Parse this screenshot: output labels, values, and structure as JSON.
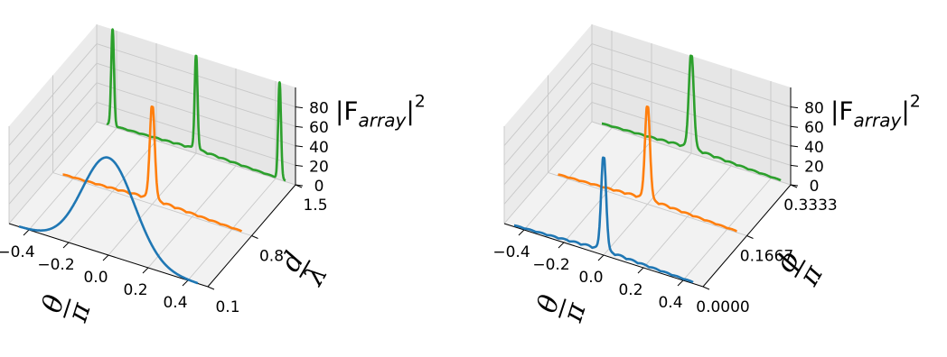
{
  "chart_data": [
    {
      "type": "line",
      "projection": "3d",
      "xlabel": "θ/π",
      "ylabel": "d/λ",
      "zlabel": "|F_array|²",
      "zlabel_main": "|F",
      "zlabel_sub": "array",
      "zlabel_sup": "2",
      "x_ticks": [
        "−0.4",
        "−0.2",
        "0.0",
        "0.2",
        "0.4"
      ],
      "y_ticks": [
        "0.1",
        "0.8",
        "1.5"
      ],
      "z_ticks": [
        "0",
        "20",
        "40",
        "60",
        "80"
      ],
      "xlim": [
        -0.5,
        0.5
      ],
      "ylim": [
        0.1,
        1.5
      ],
      "zlim": [
        0,
        100
      ],
      "grid": true,
      "series": [
        {
          "y": 0.1,
          "color": "#1f77b4",
          "peaks_x": [
            0.0
          ],
          "peak_height": 100,
          "peak_width": 0.13,
          "sidelobe": 0
        },
        {
          "y": 0.8,
          "color": "#ff7f0e",
          "peaks_x": [
            0.0
          ],
          "peak_height": 100,
          "peak_width": 0.012,
          "sidelobe": 5
        },
        {
          "y": 1.5,
          "color": "#2ca02c",
          "peaks_x": [
            -0.42,
            0.0,
            0.42
          ],
          "peak_height": 100,
          "peak_width": 0.007,
          "sidelobe": 4
        }
      ]
    },
    {
      "type": "line",
      "projection": "3d",
      "xlabel": "θ/π",
      "ylabel": "ϕ/π",
      "zlabel": "|F_array|²",
      "zlabel_main": "|F",
      "zlabel_sub": "array",
      "zlabel_sup": "2",
      "x_ticks": [
        "−0.4",
        "−0.2",
        "0.0",
        "0.2",
        "0.4"
      ],
      "y_ticks": [
        "0.0000",
        "0.1667",
        "0.3333"
      ],
      "z_ticks": [
        "0",
        "20",
        "40",
        "60",
        "80"
      ],
      "xlim": [
        -0.5,
        0.5
      ],
      "ylim": [
        0.0,
        0.3333
      ],
      "zlim": [
        0,
        100
      ],
      "grid": true,
      "series": [
        {
          "y": 0.0,
          "color": "#1f77b4",
          "peaks_x": [
            0.0
          ],
          "peak_height": 100,
          "peak_width": 0.012,
          "sidelobe": 5
        },
        {
          "y": 0.1667,
          "color": "#ff7f0e",
          "peaks_x": [
            0.0
          ],
          "peak_height": 100,
          "peak_width": 0.012,
          "sidelobe": 5
        },
        {
          "y": 0.3333,
          "color": "#2ca02c",
          "peaks_x": [
            0.0
          ],
          "peak_height": 100,
          "peak_width": 0.012,
          "sidelobe": 5
        }
      ]
    }
  ]
}
